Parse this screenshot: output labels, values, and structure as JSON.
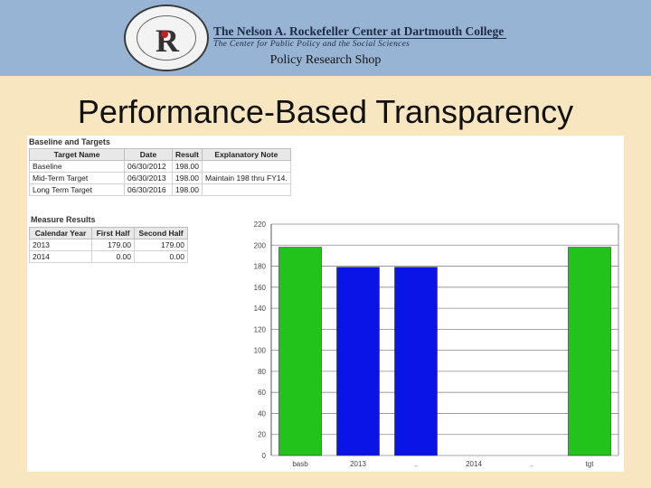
{
  "header": {
    "center_name": "The Nelson A. Rockefeller Center at Dartmouth College",
    "center_subtitle": "The Center for Public Policy and the Social Sciences",
    "seal_letter": "R",
    "policy_shop": "Policy Research Shop"
  },
  "slide_title": "Performance-Based Transparency",
  "baseline_targets": {
    "title": "Baseline and Targets",
    "columns": [
      "Target Name",
      "Date",
      "Result",
      "Explanatory Note"
    ],
    "rows": [
      [
        "Baseline",
        "06/30/2012",
        "198.00",
        ""
      ],
      [
        "Mid-Term Target",
        "06/30/2013",
        "198.00",
        "Maintain 198 thru FY14."
      ],
      [
        "Long Term Target",
        "06/30/2016",
        "198.00",
        ""
      ]
    ]
  },
  "measure_results": {
    "title": "Measure Results",
    "columns": [
      "Calendar Year",
      "First Half",
      "Second Half"
    ],
    "rows": [
      [
        "2013",
        "179.00",
        "179.00"
      ],
      [
        "2014",
        "0.00",
        "0.00"
      ]
    ]
  },
  "chart_data": {
    "type": "bar",
    "categories": [
      "basb",
      "2013",
      ".",
      "2014",
      ".",
      "tgt"
    ],
    "values": [
      198,
      179,
      179,
      0,
      0,
      198
    ],
    "bar_colors": [
      "#22c41c",
      "#0a14e6",
      "#0a14e6",
      "#0a14e6",
      "#0a14e6",
      "#22c41c"
    ],
    "ylim": [
      0,
      220
    ],
    "yticks": [
      "0",
      "20",
      "40",
      "60",
      "80",
      "100",
      "120",
      "140",
      "160",
      "180",
      "200",
      "220"
    ],
    "grid": true,
    "title": "",
    "xlabel": "",
    "ylabel": ""
  }
}
